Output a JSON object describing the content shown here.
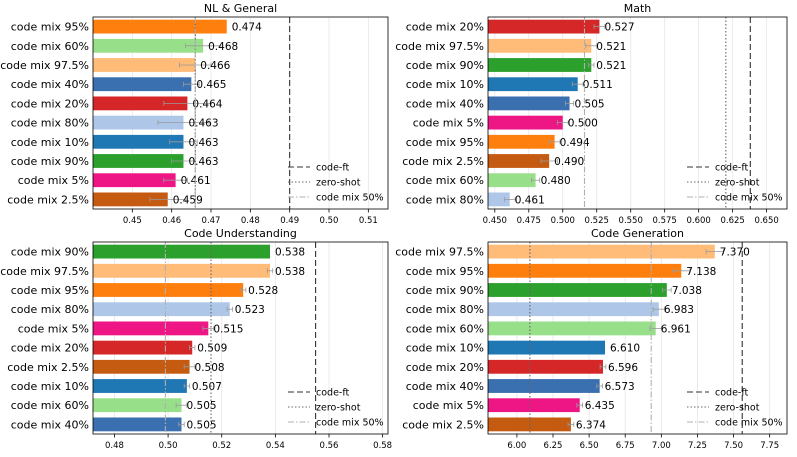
{
  "chart_data": [
    {
      "type": "bar",
      "orientation": "horizontal",
      "title": "NL & General",
      "xlim": [
        0.44,
        0.515
      ],
      "xticks": [
        0.45,
        0.46,
        0.47,
        0.48,
        0.49,
        0.5,
        0.51
      ],
      "xtick_labels": [
        "0.45",
        "0.46",
        "0.47",
        "0.48",
        "0.49",
        "0.50",
        "0.51"
      ],
      "categories": [
        "code mix 95%",
        "code mix 60%",
        "code mix 97.5%",
        "code mix 40%",
        "code mix 20%",
        "code mix 80%",
        "code mix 10%",
        "code mix 90%",
        "code mix 5%",
        "code mix 2.5%"
      ],
      "values": [
        0.474,
        0.468,
        0.466,
        0.465,
        0.464,
        0.463,
        0.463,
        0.463,
        0.461,
        0.459
      ],
      "value_labels": [
        "0.474",
        "0.468",
        "0.466",
        "0.465",
        "0.464",
        "0.463",
        "0.463",
        "0.463",
        "0.461",
        "0.459"
      ],
      "errors": [
        0.0,
        0.0045,
        0.004,
        0.002,
        0.006,
        0.0065,
        0.0035,
        0.003,
        0.003,
        0.0045
      ],
      "colors": [
        "#ff7f0e",
        "#98df8a",
        "#ffbb78",
        "#3a6fb0",
        "#d62728",
        "#aec7e8",
        "#1f77b4",
        "#2ca02c",
        "#ee1585",
        "#c55a11"
      ],
      "reference_lines": {
        "code-ft": 0.49,
        "zero-shot": 0.466,
        "code mix 50%": 0.466
      },
      "legend": {
        "placement": "lower-right",
        "entries": [
          "code-ft",
          "zero-shot",
          "code mix 50%"
        ]
      }
    },
    {
      "type": "bar",
      "orientation": "horizontal",
      "title": "Math",
      "xlim": [
        0.445,
        0.665
      ],
      "xticks": [
        0.45,
        0.475,
        0.5,
        0.525,
        0.55,
        0.575,
        0.6,
        0.625,
        0.65
      ],
      "xtick_labels": [
        "0.450",
        "0.475",
        "0.500",
        "0.525",
        "0.550",
        "0.575",
        "0.600",
        "0.625",
        "0.650"
      ],
      "categories": [
        "code mix 20%",
        "code mix 97.5%",
        "code mix 90%",
        "code mix 10%",
        "code mix 40%",
        "code mix 5%",
        "code mix 95%",
        "code mix 2.5%",
        "code mix 60%",
        "code mix 80%"
      ],
      "values": [
        0.527,
        0.521,
        0.521,
        0.511,
        0.505,
        0.5,
        0.494,
        0.49,
        0.48,
        0.461
      ],
      "value_labels": [
        "0.527",
        "0.521",
        "0.521",
        "0.511",
        "0.505",
        "0.500",
        "0.494",
        "0.490",
        "0.480",
        "0.461"
      ],
      "errors": [
        0.004,
        0.004,
        0.002,
        0.004,
        0.003,
        0.004,
        0.004,
        0.006,
        0.003,
        0.004
      ],
      "colors": [
        "#d62728",
        "#ffbb78",
        "#2ca02c",
        "#1f77b4",
        "#3a6fb0",
        "#ee1585",
        "#ff7f0e",
        "#c55a11",
        "#98df8a",
        "#aec7e8"
      ],
      "reference_lines": {
        "code-ft": 0.638,
        "zero-shot": 0.62,
        "code mix 50%": 0.516
      },
      "legend": {
        "placement": "lower-right",
        "entries": [
          "code-ft",
          "zero-shot",
          "code mix 50%"
        ]
      }
    },
    {
      "type": "bar",
      "orientation": "horizontal",
      "title": "Code Understanding",
      "xlim": [
        0.472,
        0.582
      ],
      "xticks": [
        0.48,
        0.5,
        0.52,
        0.54,
        0.56,
        0.58
      ],
      "xtick_labels": [
        "0.48",
        "0.50",
        "0.52",
        "0.54",
        "0.56",
        "0.58"
      ],
      "categories": [
        "code mix 90%",
        "code mix 97.5%",
        "code mix 95%",
        "code mix 80%",
        "code mix 5%",
        "code mix 20%",
        "code mix 2.5%",
        "code mix 10%",
        "code mix 60%",
        "code mix 40%"
      ],
      "values": [
        0.538,
        0.538,
        0.528,
        0.523,
        0.515,
        0.509,
        0.508,
        0.507,
        0.505,
        0.505
      ],
      "value_labels": [
        "0.538",
        "0.538",
        "0.528",
        "0.523",
        "0.515",
        "0.509",
        "0.508",
        "0.507",
        "0.505",
        "0.505"
      ],
      "errors": [
        0.0,
        0.001,
        0.001,
        0.001,
        0.002,
        0.001,
        0.002,
        0.001,
        0.002,
        0.001
      ],
      "colors": [
        "#2ca02c",
        "#ffbb78",
        "#ff7f0e",
        "#aec7e8",
        "#ee1585",
        "#d62728",
        "#c55a11",
        "#1f77b4",
        "#98df8a",
        "#3a6fb0"
      ],
      "reference_lines": {
        "code-ft": 0.555,
        "zero-shot": 0.516,
        "code mix 50%": 0.499
      },
      "legend": {
        "placement": "lower-right",
        "entries": [
          "code-ft",
          "zero-shot",
          "code mix 50%"
        ]
      }
    },
    {
      "type": "bar",
      "orientation": "horizontal",
      "title": "Code Generation",
      "xlim": [
        5.8,
        7.87
      ],
      "xticks": [
        6.0,
        6.25,
        6.5,
        6.75,
        7.0,
        7.25,
        7.5,
        7.75
      ],
      "xtick_labels": [
        "6.00",
        "6.25",
        "6.50",
        "6.75",
        "7.00",
        "7.25",
        "7.50",
        "7.75"
      ],
      "categories": [
        "code mix 97.5%",
        "code mix 95%",
        "code mix 90%",
        "code mix 80%",
        "code mix 60%",
        "code mix 10%",
        "code mix 20%",
        "code mix 40%",
        "code mix 5%",
        "code mix 2.5%"
      ],
      "values": [
        7.37,
        7.138,
        7.038,
        6.983,
        6.961,
        6.61,
        6.596,
        6.573,
        6.435,
        6.374
      ],
      "value_labels": [
        "7.370",
        "7.138",
        "7.038",
        "6.983",
        "6.961",
        "6.610",
        "6.596",
        "6.573",
        "6.435",
        "6.374"
      ],
      "errors": [
        0.06,
        0.06,
        0.03,
        0.04,
        0.04,
        0.0,
        0.02,
        0.02,
        0.02,
        0.02
      ],
      "colors": [
        "#ffbb78",
        "#ff7f0e",
        "#2ca02c",
        "#aec7e8",
        "#98df8a",
        "#1f77b4",
        "#d62728",
        "#3a6fb0",
        "#ee1585",
        "#c55a11"
      ],
      "reference_lines": {
        "code-ft": 7.56,
        "zero-shot": 6.09,
        "code mix 50%": 6.93
      },
      "legend": {
        "placement": "lower-right",
        "entries": [
          "code-ft",
          "zero-shot",
          "code mix 50%"
        ]
      }
    }
  ]
}
